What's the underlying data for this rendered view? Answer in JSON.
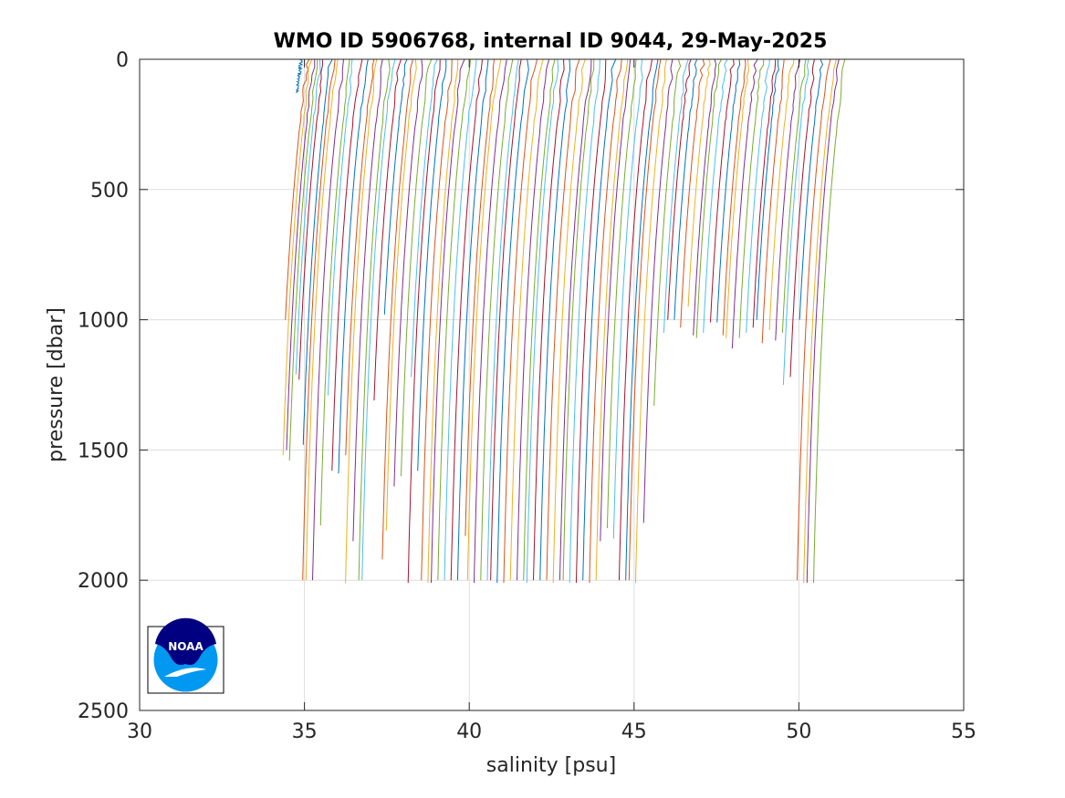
{
  "chart_data": {
    "type": "line",
    "title": "WMO ID 5906768, internal ID 9044, 29-May-2025",
    "xlabel": "salinity [psu]",
    "ylabel": "pressure [dbar]",
    "xlim": [
      30,
      55
    ],
    "ylim": [
      0,
      2500
    ],
    "y_reversed": true,
    "grid": true,
    "x_ticks": [
      "30",
      "35",
      "40",
      "45",
      "50",
      "55"
    ],
    "y_ticks": [
      "0",
      "500",
      "1000",
      "1500",
      "2000",
      "2500"
    ],
    "series_colors": [
      "#0072BD",
      "#D95319",
      "#EDB120",
      "#7E2F8E",
      "#77AC30",
      "#4DBEEE",
      "#A2142F"
    ],
    "profile_note": "salinity profiles offset successively; each value is [surface salinity, max pressure]",
    "profiles": [
      [
        34.9,
        130
      ],
      [
        35.1,
        1000
      ],
      [
        35.2,
        1520
      ],
      [
        35.3,
        1500
      ],
      [
        35.4,
        1540
      ],
      [
        35.5,
        1210
      ],
      [
        35.6,
        1230
      ],
      [
        35.8,
        1480
      ],
      [
        35.9,
        2000
      ],
      [
        36.0,
        2000
      ],
      [
        36.2,
        2000
      ],
      [
        36.4,
        1790
      ],
      [
        36.5,
        1290
      ],
      [
        36.7,
        1580
      ],
      [
        36.9,
        1590
      ],
      [
        37.1,
        1520
      ],
      [
        37.2,
        2010
      ],
      [
        37.4,
        1850
      ],
      [
        37.6,
        2000
      ],
      [
        37.7,
        2000
      ],
      [
        37.9,
        1310
      ],
      [
        38.1,
        980
      ],
      [
        38.3,
        1920
      ],
      [
        38.4,
        1810
      ],
      [
        38.6,
        1640
      ],
      [
        38.8,
        1600
      ],
      [
        39.0,
        1220
      ],
      [
        39.1,
        2010
      ],
      [
        39.3,
        1580
      ],
      [
        39.5,
        2000
      ],
      [
        39.7,
        2010
      ],
      [
        39.8,
        2010
      ],
      [
        40.0,
        2000
      ],
      [
        40.2,
        2000
      ],
      [
        40.4,
        2000
      ],
      [
        40.6,
        2000
      ],
      [
        40.8,
        1830
      ],
      [
        40.9,
        2000
      ],
      [
        41.1,
        2010
      ],
      [
        41.3,
        2000
      ],
      [
        41.5,
        2000
      ],
      [
        41.6,
        2000
      ],
      [
        41.8,
        2010
      ],
      [
        42.0,
        2010
      ],
      [
        42.2,
        2000
      ],
      [
        42.4,
        2000
      ],
      [
        42.6,
        2000
      ],
      [
        42.7,
        2010
      ],
      [
        42.9,
        2000
      ],
      [
        43.1,
        2000
      ],
      [
        43.3,
        2000
      ],
      [
        43.5,
        2010
      ],
      [
        43.7,
        2000
      ],
      [
        43.8,
        2000
      ],
      [
        44.0,
        2010
      ],
      [
        44.2,
        2010
      ],
      [
        44.4,
        2000
      ],
      [
        44.6,
        2010
      ],
      [
        44.8,
        2000
      ],
      [
        44.9,
        1850
      ],
      [
        45.1,
        1800
      ],
      [
        45.3,
        1840
      ],
      [
        45.5,
        2000
      ],
      [
        45.7,
        2000
      ],
      [
        45.8,
        2000
      ],
      [
        46.0,
        2010
      ],
      [
        46.2,
        1780
      ],
      [
        46.4,
        1330
      ],
      [
        46.6,
        1050
      ],
      [
        46.7,
        1000
      ],
      [
        46.9,
        1000
      ],
      [
        47.1,
        1030
      ],
      [
        47.3,
        950
      ],
      [
        47.5,
        1060
      ],
      [
        47.6,
        1070
      ],
      [
        47.8,
        1050
      ],
      [
        48.0,
        1010
      ],
      [
        48.2,
        1010
      ],
      [
        48.4,
        1060
      ],
      [
        48.5,
        1070
      ],
      [
        48.7,
        1110
      ],
      [
        48.9,
        1070
      ],
      [
        49.1,
        1050
      ],
      [
        49.3,
        1030
      ],
      [
        49.4,
        1000
      ],
      [
        49.6,
        1090
      ],
      [
        49.8,
        1040
      ],
      [
        50.0,
        1080
      ],
      [
        50.2,
        1050
      ],
      [
        50.3,
        1250
      ],
      [
        50.5,
        1220
      ],
      [
        50.7,
        1000
      ],
      [
        50.9,
        2000
      ],
      [
        51.1,
        2010
      ],
      [
        51.2,
        2010
      ],
      [
        51.4,
        2010
      ]
    ]
  },
  "logo": {
    "name": "NOAA",
    "text": "NOAA",
    "colors": {
      "dark": "#000080",
      "light": "#0098F0"
    }
  }
}
